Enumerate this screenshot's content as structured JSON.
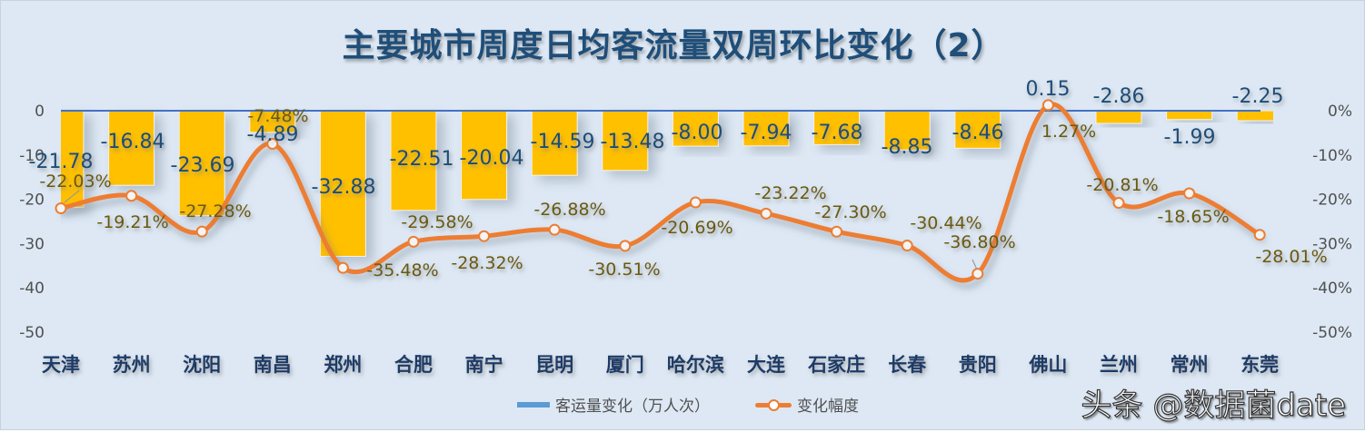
{
  "title": "主要城市周度日均客流量双周环比变化（2）",
  "legend": {
    "bar_series": "客运量变化（万人次）",
    "line_series": "变化幅度"
  },
  "watermark": "头条 @数据菌date",
  "colors": {
    "bar": "#FFC000",
    "line": "#ED7D31",
    "zero_line": "#4472C4",
    "legend_bar": "#5B9BD5",
    "title": "#1F4E79",
    "background": "#DDE8F4"
  },
  "left_axis": {
    "ticks": [
      "0",
      "-10",
      "-20",
      "-30",
      "-40",
      "-50"
    ]
  },
  "right_axis": {
    "ticks": [
      "0%",
      "-10%",
      "-20%",
      "-30%",
      "-40%",
      "-50%"
    ]
  },
  "chart_data": {
    "type": "bar+line",
    "title": "主要城市周度日均客流量双周环比变化（2）",
    "categories": [
      "天津",
      "苏州",
      "沈阳",
      "南昌",
      "郑州",
      "合肥",
      "南宁",
      "昆明",
      "厦门",
      "哈尔滨",
      "大连",
      "石家庄",
      "长春",
      "贵阳",
      "佛山",
      "兰州",
      "常州",
      "东莞"
    ],
    "series": [
      {
        "name": "客运量变化（万人次）",
        "type": "bar",
        "axis": "left",
        "values": [
          -21.78,
          -16.84,
          -23.69,
          -4.89,
          -32.88,
          -22.51,
          -20.04,
          -14.59,
          -13.48,
          -8.0,
          -7.94,
          -7.68,
          -8.85,
          -8.46,
          0.15,
          -2.86,
          -1.99,
          -2.25
        ],
        "labels": [
          "-21.78",
          "-16.84",
          "-23.69",
          "-4.89",
          "-32.88",
          "-22.51",
          "-20.04",
          "-14.59",
          "-13.48",
          "-8.00",
          "-7.94",
          "-7.68",
          "-8.85",
          "-8.46",
          "0.15",
          "-2.86",
          "-1.99",
          "-2.25"
        ]
      },
      {
        "name": "变化幅度",
        "type": "line",
        "axis": "right",
        "values": [
          -22.03,
          -19.21,
          -27.28,
          -7.48,
          -35.48,
          -29.58,
          -28.32,
          -26.88,
          -30.51,
          -20.69,
          -23.22,
          -27.3,
          -30.44,
          -36.8,
          1.27,
          -20.81,
          -18.65,
          -28.01
        ],
        "labels": [
          "-22.03%",
          "-19.21%",
          "-27.28%",
          "-7.48%",
          "-35.48%",
          "-29.58%",
          "-28.32%",
          "-26.88%",
          "-30.51%",
          "-20.69%",
          "-23.22%",
          "-27.30%",
          "-30.44%",
          "-36.80%",
          "1.27%",
          "-20.81%",
          "-18.65%",
          "-28.01%"
        ]
      }
    ],
    "left_ylim": [
      -50,
      0
    ],
    "right_ylim": [
      -0.5,
      0
    ],
    "ylabel_left": "",
    "ylabel_right": "",
    "xlabel": "",
    "grid": false,
    "legend_position": "bottom"
  }
}
